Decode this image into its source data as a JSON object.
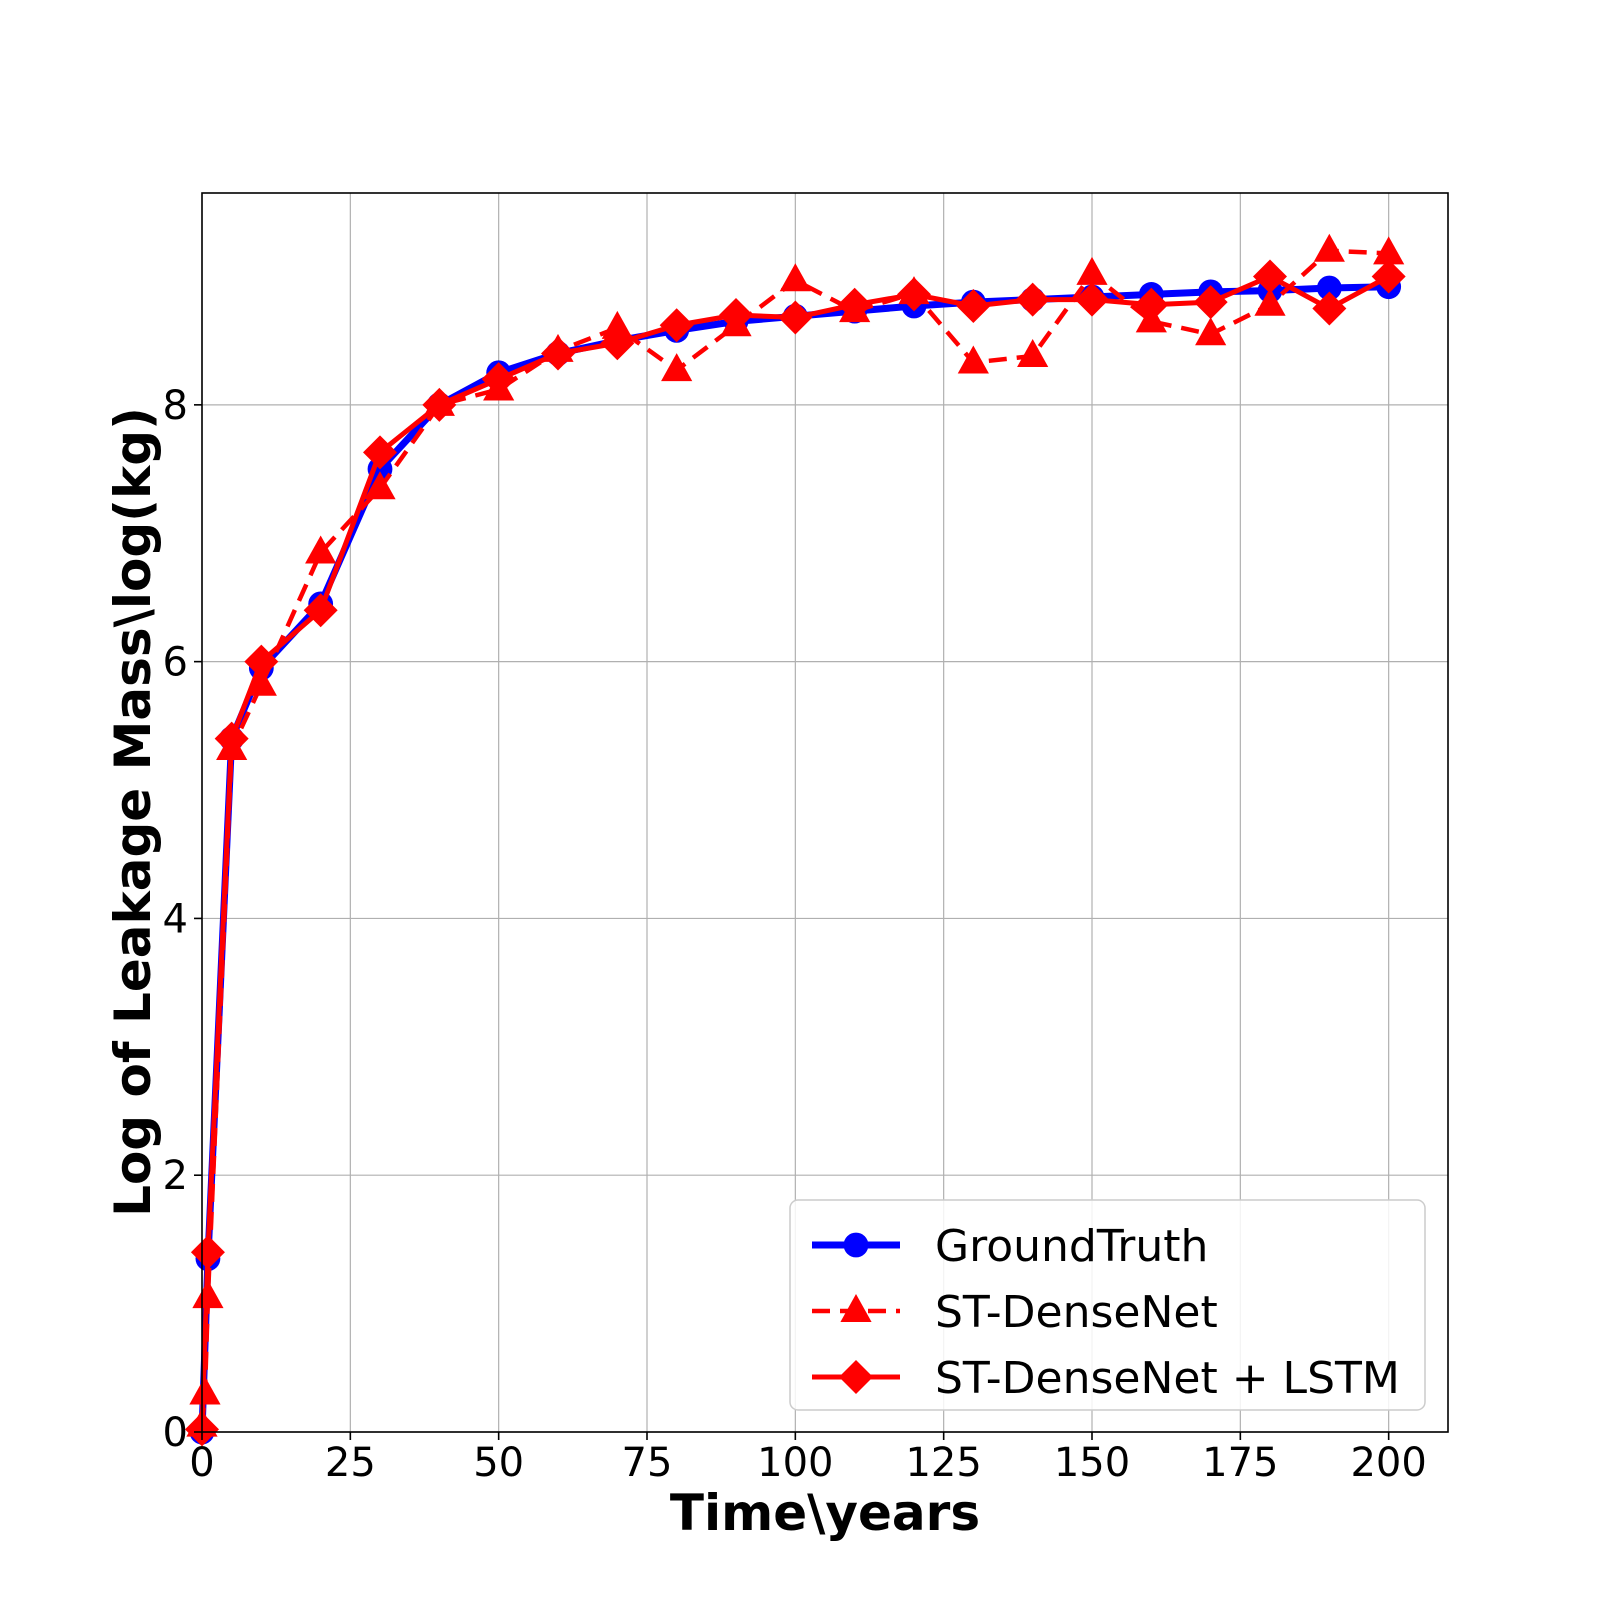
{
  "chart_data": {
    "type": "line",
    "xlabel": "Time\\years",
    "ylabel": "Log of Leakage Mass\\log(kg)",
    "xlim": [
      0,
      210
    ],
    "ylim": [
      0,
      9.65
    ],
    "xticks": [
      0,
      25,
      50,
      75,
      100,
      125,
      150,
      175,
      200
    ],
    "yticks": [
      0,
      2,
      4,
      6,
      8
    ],
    "grid": true,
    "legend_position": "bottom-right",
    "series": [
      {
        "name": "GroundTruth",
        "color": "#0000ff",
        "line_style": "solid",
        "marker": "circle",
        "x": [
          0,
          1,
          5,
          10,
          20,
          30,
          40,
          50,
          60,
          70,
          80,
          90,
          100,
          110,
          120,
          130,
          140,
          150,
          160,
          170,
          180,
          190,
          200
        ],
        "y": [
          0.0,
          1.35,
          5.4,
          5.95,
          6.45,
          7.5,
          8.0,
          8.25,
          8.4,
          8.5,
          8.58,
          8.65,
          8.69,
          8.73,
          8.77,
          8.8,
          8.82,
          8.84,
          8.86,
          8.88,
          8.89,
          8.91,
          8.92
        ]
      },
      {
        "name": "ST-DenseNet",
        "color": "#ff0000",
        "line_style": "dashed",
        "marker": "triangle",
        "x": [
          0,
          0.5,
          1,
          5,
          10,
          20,
          30,
          40,
          50,
          60,
          70,
          80,
          90,
          100,
          110,
          120,
          130,
          140,
          150,
          160,
          170,
          180,
          190,
          200
        ],
        "y": [
          0.05,
          0.3,
          1.05,
          5.32,
          5.82,
          6.85,
          7.35,
          8.0,
          8.12,
          8.42,
          8.6,
          8.27,
          8.62,
          8.97,
          8.73,
          8.87,
          8.33,
          8.38,
          9.02,
          8.65,
          8.55,
          8.78,
          9.2,
          9.18
        ]
      },
      {
        "name": "ST-DenseNet + LSTM",
        "color": "#ff0000",
        "line_style": "solid",
        "marker": "diamond",
        "x": [
          0,
          1,
          5,
          10,
          20,
          30,
          40,
          50,
          60,
          70,
          80,
          90,
          100,
          110,
          120,
          130,
          140,
          150,
          160,
          170,
          180,
          190,
          200
        ],
        "y": [
          0.02,
          1.4,
          5.4,
          6.0,
          6.4,
          7.63,
          8.0,
          8.2,
          8.4,
          8.48,
          8.62,
          8.7,
          8.68,
          8.78,
          8.86,
          8.77,
          8.82,
          8.82,
          8.78,
          8.8,
          9.0,
          8.75,
          9.0
        ]
      }
    ]
  }
}
